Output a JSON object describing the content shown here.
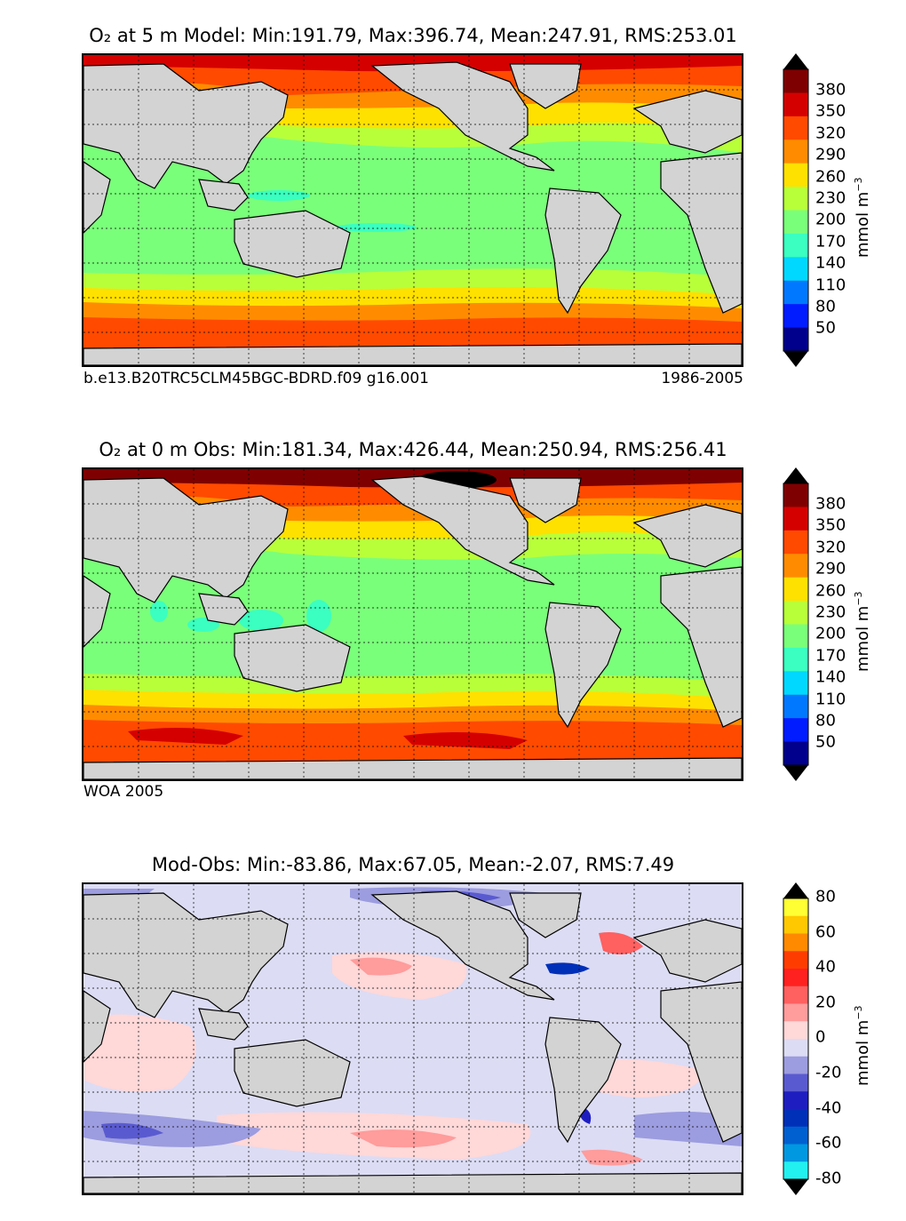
{
  "panels": [
    {
      "title": "O₂ at 5 m Model: Min:191.79, Max:396.74, Mean:247.91, RMS:253.01",
      "footer_left": "b.e13.B20TRC5CLM45BGC-BDRD.f09 g16.001",
      "footer_right": "1986-2005",
      "colorbar": {
        "ticks": [
          "380",
          "350",
          "320",
          "290",
          "260",
          "230",
          "200",
          "170",
          "140",
          "110",
          "80",
          "50"
        ],
        "unit": "mmol m",
        "unit_exp": "−3",
        "colors": [
          "#7f0000",
          "#d40000",
          "#ff4a00",
          "#ff8c00",
          "#ffe100",
          "#b8ff3a",
          "#7aff7a",
          "#3affc0",
          "#00d8ff",
          "#0078ff",
          "#001cff",
          "#00008c"
        ]
      }
    },
    {
      "title": "O₂ at 0 m Obs: Min:181.34, Max:426.44, Mean:250.94, RMS:256.41",
      "footer_left": "WOA 2005",
      "footer_right": "",
      "colorbar": {
        "ticks": [
          "380",
          "350",
          "320",
          "290",
          "260",
          "230",
          "200",
          "170",
          "140",
          "110",
          "80",
          "50"
        ],
        "unit": "mmol m",
        "unit_exp": "−3",
        "colors": [
          "#7f0000",
          "#d40000",
          "#ff4a00",
          "#ff8c00",
          "#ffe100",
          "#b8ff3a",
          "#7aff7a",
          "#3affc0",
          "#00d8ff",
          "#0078ff",
          "#001cff",
          "#00008c"
        ]
      }
    },
    {
      "title": "Mod-Obs: Min:-83.86, Max:67.05, Mean:-2.07, RMS:7.49",
      "footer_left": "",
      "footer_right": "",
      "colorbar": {
        "ticks": [
          "80",
          "60",
          "40",
          "20",
          "0",
          "-20",
          "-40",
          "-60",
          "-80"
        ],
        "unit": "mmol m",
        "unit_exp": "−3",
        "colors": [
          "#ffff33",
          "#ffc800",
          "#ff8a00",
          "#ff3c00",
          "#ff2020",
          "#ff6060",
          "#ff9c9c",
          "#ffd8d8",
          "#dcdcf4",
          "#9c9ce0",
          "#5a5ad0",
          "#1e1ec0",
          "#0030b8",
          "#0060d0",
          "#0098e0",
          "#22f0f0"
        ]
      }
    }
  ],
  "map_colors": {
    "land": "#d3d3d3",
    "coast": "#000000",
    "grid": "#000000"
  }
}
